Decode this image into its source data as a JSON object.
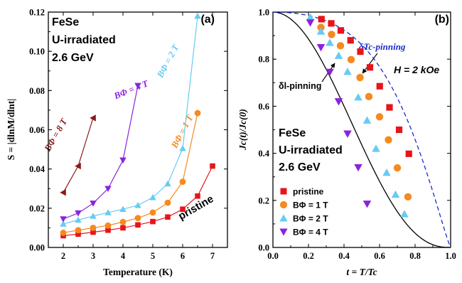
{
  "colors": {
    "red": "#e8141b",
    "orange": "#f58a1f",
    "cyan": "#66ccf2",
    "purple": "#8a22e0",
    "darkred": "#8b1a1a",
    "blue": "#1a2bcc",
    "black": "#000000"
  },
  "chart_data": [
    {
      "type": "line",
      "panel_label": "(a)",
      "sample_label": [
        "FeSe",
        "U-irradiated",
        "2.6 GeV"
      ],
      "xlabel": "Temperature (K)",
      "ylabel": "S = |dlnM/dlnt|",
      "xlim": [
        1.5,
        7.5
      ],
      "ylim": [
        0.0,
        0.12
      ],
      "xticks": [
        2,
        3,
        4,
        5,
        6,
        7
      ],
      "xtick_labels": [
        "2",
        "3",
        "4",
        "5",
        "6",
        "7"
      ],
      "yticks": [
        0.0,
        0.02,
        0.04,
        0.06,
        0.08,
        0.1,
        0.12
      ],
      "ytick_labels": [
        "0.00",
        "0.02",
        "0.04",
        "0.06",
        "0.08",
        "0.10",
        "0.12"
      ],
      "series": [
        {
          "name": "pristine",
          "marker": "square",
          "color": "#e8141b",
          "x": [
            2.0,
            2.5,
            3.0,
            3.5,
            4.0,
            4.5,
            5.0,
            5.5,
            6.0,
            6.5,
            7.0
          ],
          "y": [
            0.006,
            0.0068,
            0.0078,
            0.0088,
            0.01,
            0.0115,
            0.0132,
            0.0155,
            0.0195,
            0.0262,
            0.0415
          ]
        },
        {
          "name": "BΦ = 1 T",
          "marker": "circle",
          "color": "#f58a1f",
          "x": [
            2.0,
            2.5,
            3.0,
            3.5,
            4.0,
            4.5,
            5.0,
            5.5,
            6.0,
            6.5
          ],
          "y": [
            0.0075,
            0.0088,
            0.01,
            0.0112,
            0.013,
            0.015,
            0.0178,
            0.0228,
            0.0335,
            0.0685
          ]
        },
        {
          "name": "BΦ = 2 T",
          "marker": "triangle-up",
          "color": "#66ccf2",
          "x": [
            2.0,
            2.5,
            3.0,
            3.5,
            4.0,
            4.5,
            5.0,
            5.5,
            6.0,
            6.5
          ],
          "y": [
            0.012,
            0.014,
            0.016,
            0.0178,
            0.0195,
            0.0215,
            0.0255,
            0.0325,
            0.0505,
            0.118
          ]
        },
        {
          "name": "BΦ = 4 T",
          "marker": "triangle-down",
          "color": "#8a22e0",
          "x": [
            2.0,
            2.5,
            3.0,
            3.5,
            4.0,
            4.5
          ],
          "y": [
            0.0145,
            0.0175,
            0.0225,
            0.03,
            0.0445,
            0.0825
          ]
        },
        {
          "name": "BΦ = 8 T",
          "marker": "triangle-left",
          "color": "#8b1a1a",
          "x": [
            2.0,
            2.5,
            3.0
          ],
          "y": [
            0.028,
            0.0415,
            0.066
          ]
        }
      ],
      "annotations": [
        {
          "text": "BΦ = 8 T",
          "color": "#8b1a1a"
        },
        {
          "text": "BΦ = 4 T",
          "color": "#8a22e0"
        },
        {
          "text": "BΦ = 2 T",
          "color": "#66ccf2"
        },
        {
          "text": "BΦ = 1 T",
          "color": "#f58a1f"
        },
        {
          "text": "pristine",
          "color": "#e8141b"
        }
      ]
    },
    {
      "type": "scatter",
      "panel_label": "(b)",
      "sample_label": [
        "FeSe",
        "U-irradiated",
        "2.6 GeV"
      ],
      "xlabel": "t = T/Tc",
      "ylabel": "Jc(t)/Jc(0)",
      "xlim": [
        0.0,
        1.0
      ],
      "ylim": [
        0.0,
        1.0
      ],
      "xticks": [
        0.0,
        0.2,
        0.4,
        0.6,
        0.8,
        1.0
      ],
      "xtick_labels": [
        "0.0",
        "0.2",
        "0.4",
        "0.6",
        "0.8",
        "1.0"
      ],
      "yticks": [
        0.0,
        0.2,
        0.4,
        0.6,
        0.8,
        1.0
      ],
      "ytick_labels": [
        "0.0",
        "0.2",
        "0.4",
        "0.6",
        "0.8",
        "1.0"
      ],
      "field_label": "H = 2 kOe",
      "curves": [
        {
          "name": "δl-pinning",
          "style": "solid",
          "color": "#000000",
          "formula": "(1-t^2)^2.5 * (1+t^2)^-0.5"
        },
        {
          "name": "δTc-pinning",
          "style": "dashed",
          "color": "#1a2bcc",
          "formula": "(1-t^2)^(7/6) * (1+t^2)^(5/6)"
        }
      ],
      "series": [
        {
          "name": "pristine",
          "marker": "square",
          "color": "#e8141b",
          "x": [
            0.273,
            0.328,
            0.382,
            0.437,
            0.492,
            0.546,
            0.601,
            0.656,
            0.71,
            0.765
          ],
          "y": [
            0.97,
            0.952,
            0.922,
            0.88,
            0.832,
            0.765,
            0.685,
            0.595,
            0.5,
            0.398
          ]
        },
        {
          "name": "BΦ = 1 T",
          "marker": "circle",
          "color": "#f58a1f",
          "x": [
            0.27,
            0.33,
            0.38,
            0.44,
            0.49,
            0.54,
            0.6,
            0.65,
            0.7,
            0.76
          ],
          "y": [
            0.935,
            0.905,
            0.857,
            0.798,
            0.722,
            0.641,
            0.555,
            0.457,
            0.338,
            0.215
          ]
        },
        {
          "name": "BΦ = 2 T",
          "marker": "triangle-up",
          "color": "#66ccf2",
          "x": [
            0.21,
            0.27,
            0.32,
            0.37,
            0.42,
            0.48,
            0.53,
            0.58,
            0.64,
            0.69,
            0.74
          ],
          "y": [
            0.978,
            0.918,
            0.87,
            0.815,
            0.747,
            0.638,
            0.54,
            0.42,
            0.318,
            0.225,
            0.142
          ]
        },
        {
          "name": "BΦ = 4 T",
          "marker": "triangle-down",
          "color": "#8a22e0",
          "x": [
            0.21,
            0.27,
            0.32,
            0.37,
            0.42,
            0.48,
            0.53
          ],
          "y": [
            0.955,
            0.85,
            0.745,
            0.62,
            0.483,
            0.34,
            0.185
          ]
        }
      ],
      "legend": {
        "position": "bottom-left",
        "entries": [
          {
            "label": "pristine",
            "marker": "square",
            "color": "#e8141b"
          },
          {
            "label": "BΦ = 1 T",
            "marker": "circle",
            "color": "#f58a1f"
          },
          {
            "label": "BΦ = 2 T",
            "marker": "triangle-up",
            "color": "#66ccf2"
          },
          {
            "label": "BΦ = 4 T",
            "marker": "triangle-down",
            "color": "#8a22e0"
          }
        ]
      }
    }
  ]
}
